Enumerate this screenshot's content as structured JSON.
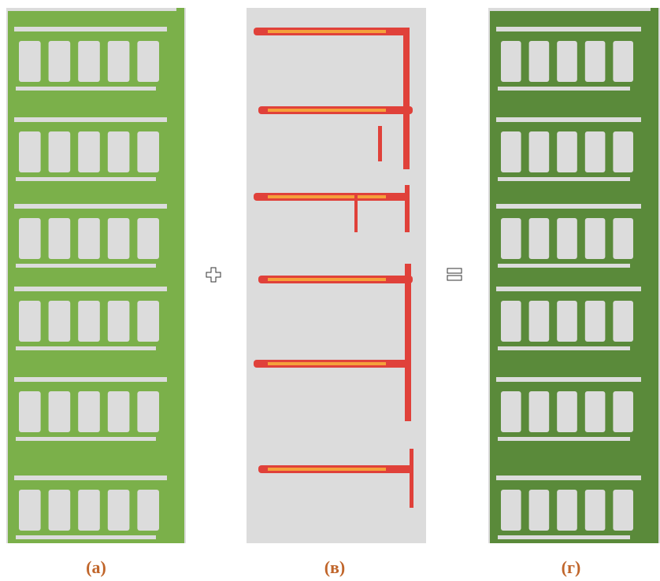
{
  "panels": [
    {
      "label": "(а)"
    },
    {
      "label": "(в)"
    },
    {
      "label": "(г)"
    }
  ]
}
